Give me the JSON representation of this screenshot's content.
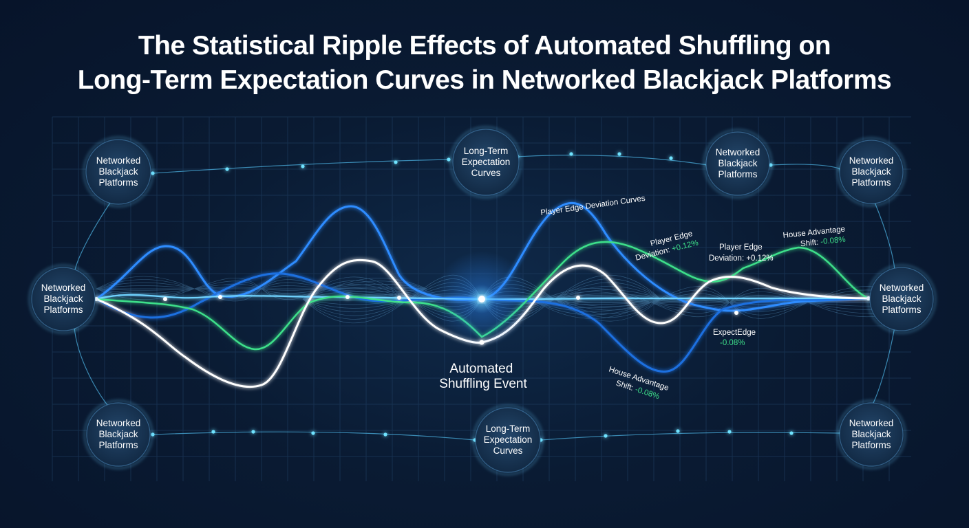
{
  "title": {
    "line1": "The Statistical Ripple Effects of Automated Shuffling on",
    "line2": "Long-Term Expectation Curves in Networked Blackjack Platforms"
  },
  "nodes": [
    {
      "id": "top-left",
      "lines": [
        "Networked",
        "Blackjack",
        "Platforms"
      ]
    },
    {
      "id": "top-center",
      "lines": [
        "Long-Term",
        "Expectation",
        "Curves"
      ]
    },
    {
      "id": "top-right-inner",
      "lines": [
        "Networked",
        "Blackjack",
        "Platforms"
      ]
    },
    {
      "id": "top-right",
      "lines": [
        "Networked",
        "Blackjack",
        "Platforms"
      ]
    },
    {
      "id": "mid-left",
      "lines": [
        "Networked",
        "Blackjack",
        "Platforms"
      ]
    },
    {
      "id": "mid-right",
      "lines": [
        "Networked",
        "Blackjack",
        "Platforms"
      ]
    },
    {
      "id": "bottom-left",
      "lines": [
        "Networked",
        "Blackjack",
        "Platforms"
      ]
    },
    {
      "id": "bottom-center",
      "lines": [
        "Long-Term",
        "Expectation",
        "Curves"
      ]
    },
    {
      "id": "bottom-right",
      "lines": [
        "Networked",
        "Blackjack",
        "Platforms"
      ]
    }
  ],
  "center_event": {
    "line1": "Automated",
    "line2": "Shuffling Event"
  },
  "annotations": {
    "player_edge_curves": "Player Edge Deviation Curves",
    "player_edge_1": {
      "line1": "Player Edge",
      "line2_prefix": "Deviation: ",
      "value": "+0.12%"
    },
    "player_edge_2": {
      "line1": "Player Edge",
      "line2": "Deviation: +0.12%"
    },
    "house_advantage_1": {
      "line1": "House Advantage",
      "line2_prefix": "Shift: ",
      "value": "-0.08%"
    },
    "expected_edge": {
      "line1": "ExpectEdge",
      "value": "-0.08%"
    },
    "house_advantage_2": {
      "line1": "House Advantage",
      "line2_prefix": "Shift: ",
      "value": "-0.08%"
    }
  },
  "colors": {
    "background": "#0a1b33",
    "grid": "#1f3f63",
    "blue": "#2e8cff",
    "cyan": "#6fd3ff",
    "green": "#3ee08a",
    "white": "#ffffff",
    "node_fill": "#17334f"
  }
}
